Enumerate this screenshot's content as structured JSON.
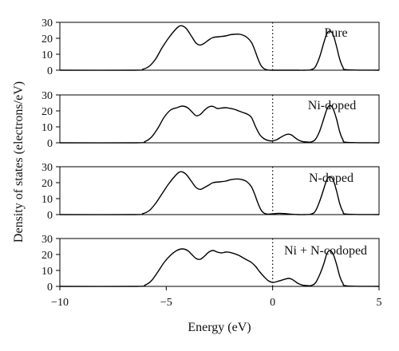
{
  "chart_data": {
    "type": "line",
    "xlabel": "Energy (eV)",
    "ylabel": "Density of states (electrons/eV)",
    "xlim": [
      -10,
      5
    ],
    "ylim": [
      0,
      30
    ],
    "xticks": [
      -10,
      -5,
      0,
      5
    ],
    "yticks": [
      0,
      10,
      20,
      30
    ],
    "fermi_level": 0,
    "colors": {
      "line": "#000000",
      "fermi": "#000000"
    },
    "panels": [
      {
        "label": "Pure",
        "series": [
          {
            "x": [
              -10,
              -6.5,
              -6.1,
              -5.8,
              -5.5,
              -5.2,
              -4.9,
              -4.6,
              -4.4,
              -4.25,
              -4.05,
              -3.8,
              -3.6,
              -3.4,
              -3.2,
              -3.0,
              -2.8,
              -2.5,
              -2.2,
              -2.0,
              -1.8,
              -1.6,
              -1.4,
              -1.2,
              -1.0,
              -0.85,
              -0.7,
              -0.55,
              -0.4,
              -0.2,
              0,
              0.3,
              0.6,
              0.9,
              1.2,
              1.5,
              1.8,
              2.0,
              2.2,
              2.4,
              2.55,
              2.7,
              2.85,
              3.0,
              3.15,
              3.3,
              3.5,
              5
            ],
            "y": [
              0,
              0,
              0.6,
              2.5,
              7,
              14,
              20,
              25,
              27.5,
              27.8,
              26,
              21,
              17,
              15.8,
              17,
              19,
              20.5,
              21,
              21.5,
              22.2,
              22.5,
              22.6,
              22,
              20.5,
              17.5,
              13,
              7.5,
              3,
              0.9,
              0.1,
              0,
              0,
              0,
              0,
              0,
              0,
              0.3,
              2,
              8,
              17,
              23,
              24.5,
              22,
              15,
              7,
              2,
              0.3,
              0
            ]
          }
        ]
      },
      {
        "label": "Ni-doped",
        "series": [
          {
            "x": [
              -10,
              -6.4,
              -6.0,
              -5.7,
              -5.4,
              -5.1,
              -4.8,
              -4.5,
              -4.25,
              -4.0,
              -3.8,
              -3.6,
              -3.4,
              -3.2,
              -3.0,
              -2.8,
              -2.6,
              -2.4,
              -2.2,
              -2.0,
              -1.8,
              -1.6,
              -1.4,
              -1.2,
              -1.0,
              -0.8,
              -0.6,
              -0.4,
              -0.2,
              0,
              0.2,
              0.4,
              0.6,
              0.75,
              0.9,
              1.05,
              1.2,
              1.4,
              1.6,
              1.8,
              2.0,
              2.2,
              2.4,
              2.55,
              2.7,
              2.85,
              3.0,
              3.15,
              3.3,
              3.5,
              5
            ],
            "y": [
              0,
              0,
              0.8,
              3.5,
              9,
              16,
              20.5,
              22,
              23,
              22,
              19.5,
              17,
              17.8,
              20.5,
              22.5,
              22.8,
              21.5,
              21.8,
              22,
              21.6,
              21,
              20,
              19,
              18,
              16,
              10,
              5,
              2.5,
              1.4,
              1.2,
              2,
              3.6,
              5,
              5.4,
              4.8,
              3.2,
              1.8,
              0.8,
              0.5,
              0.5,
              2,
              7,
              15,
              21,
              23.5,
              21,
              15,
              7,
              2,
              0.3,
              0
            ]
          }
        ]
      },
      {
        "label": "N-doped",
        "series": [
          {
            "x": [
              -10,
              -6.5,
              -6.1,
              -5.8,
              -5.5,
              -5.2,
              -4.9,
              -4.6,
              -4.4,
              -4.25,
              -4.05,
              -3.8,
              -3.6,
              -3.4,
              -3.2,
              -3.0,
              -2.8,
              -2.5,
              -2.2,
              -2.0,
              -1.8,
              -1.6,
              -1.4,
              -1.2,
              -1.0,
              -0.85,
              -0.7,
              -0.55,
              -0.4,
              -0.2,
              0,
              0.3,
              0.6,
              0.9,
              1.2,
              1.5,
              1.8,
              2.0,
              2.2,
              2.4,
              2.55,
              2.7,
              2.85,
              3.0,
              3.15,
              3.3,
              3.5,
              5
            ],
            "y": [
              0,
              0,
              0.6,
              2.5,
              7,
              13,
              19,
              24,
              26.5,
              26.8,
              25,
              20.5,
              17,
              15.8,
              17,
              18.5,
              20,
              20.5,
              21,
              21.8,
              22.2,
              22.3,
              21.8,
              20.5,
              17.5,
              13,
              7.5,
              3,
              0.9,
              0.3,
              0.5,
              0.8,
              0.6,
              0.2,
              0,
              0,
              0.3,
              2,
              8,
              16,
              22,
              23.8,
              21.5,
              15,
              7,
              2,
              0.3,
              0
            ]
          }
        ]
      },
      {
        "label": "Ni + N-codoped",
        "series": [
          {
            "x": [
              -10,
              -6.4,
              -6.0,
              -5.7,
              -5.4,
              -5.1,
              -4.8,
              -4.5,
              -4.25,
              -4.0,
              -3.8,
              -3.6,
              -3.4,
              -3.2,
              -3.0,
              -2.8,
              -2.6,
              -2.4,
              -2.2,
              -2.0,
              -1.8,
              -1.6,
              -1.4,
              -1.2,
              -1.0,
              -0.8,
              -0.6,
              -0.4,
              -0.2,
              0,
              0.2,
              0.4,
              0.6,
              0.75,
              0.9,
              1.05,
              1.2,
              1.4,
              1.6,
              1.8,
              2.0,
              2.2,
              2.4,
              2.55,
              2.7,
              2.85,
              3.0,
              3.15,
              3.3,
              3.5,
              5
            ],
            "y": [
              0,
              0,
              0.8,
              3.5,
              9,
              15,
              19.5,
              22.5,
              23.5,
              22.5,
              20,
              17.5,
              17,
              19,
              21.5,
              22.5,
              21.5,
              21,
              21.5,
              21.3,
              20.5,
              19.5,
              18,
              16.5,
              15,
              12.5,
              9,
              6,
              3.5,
              2.5,
              3,
              3.8,
              4.6,
              5,
              4.5,
              3.2,
              1.8,
              0.8,
              0.5,
              0.5,
              2,
              7,
              14,
              20.5,
              22.5,
              20,
              14,
              6.5,
              2,
              0.3,
              0
            ]
          }
        ]
      }
    ]
  }
}
